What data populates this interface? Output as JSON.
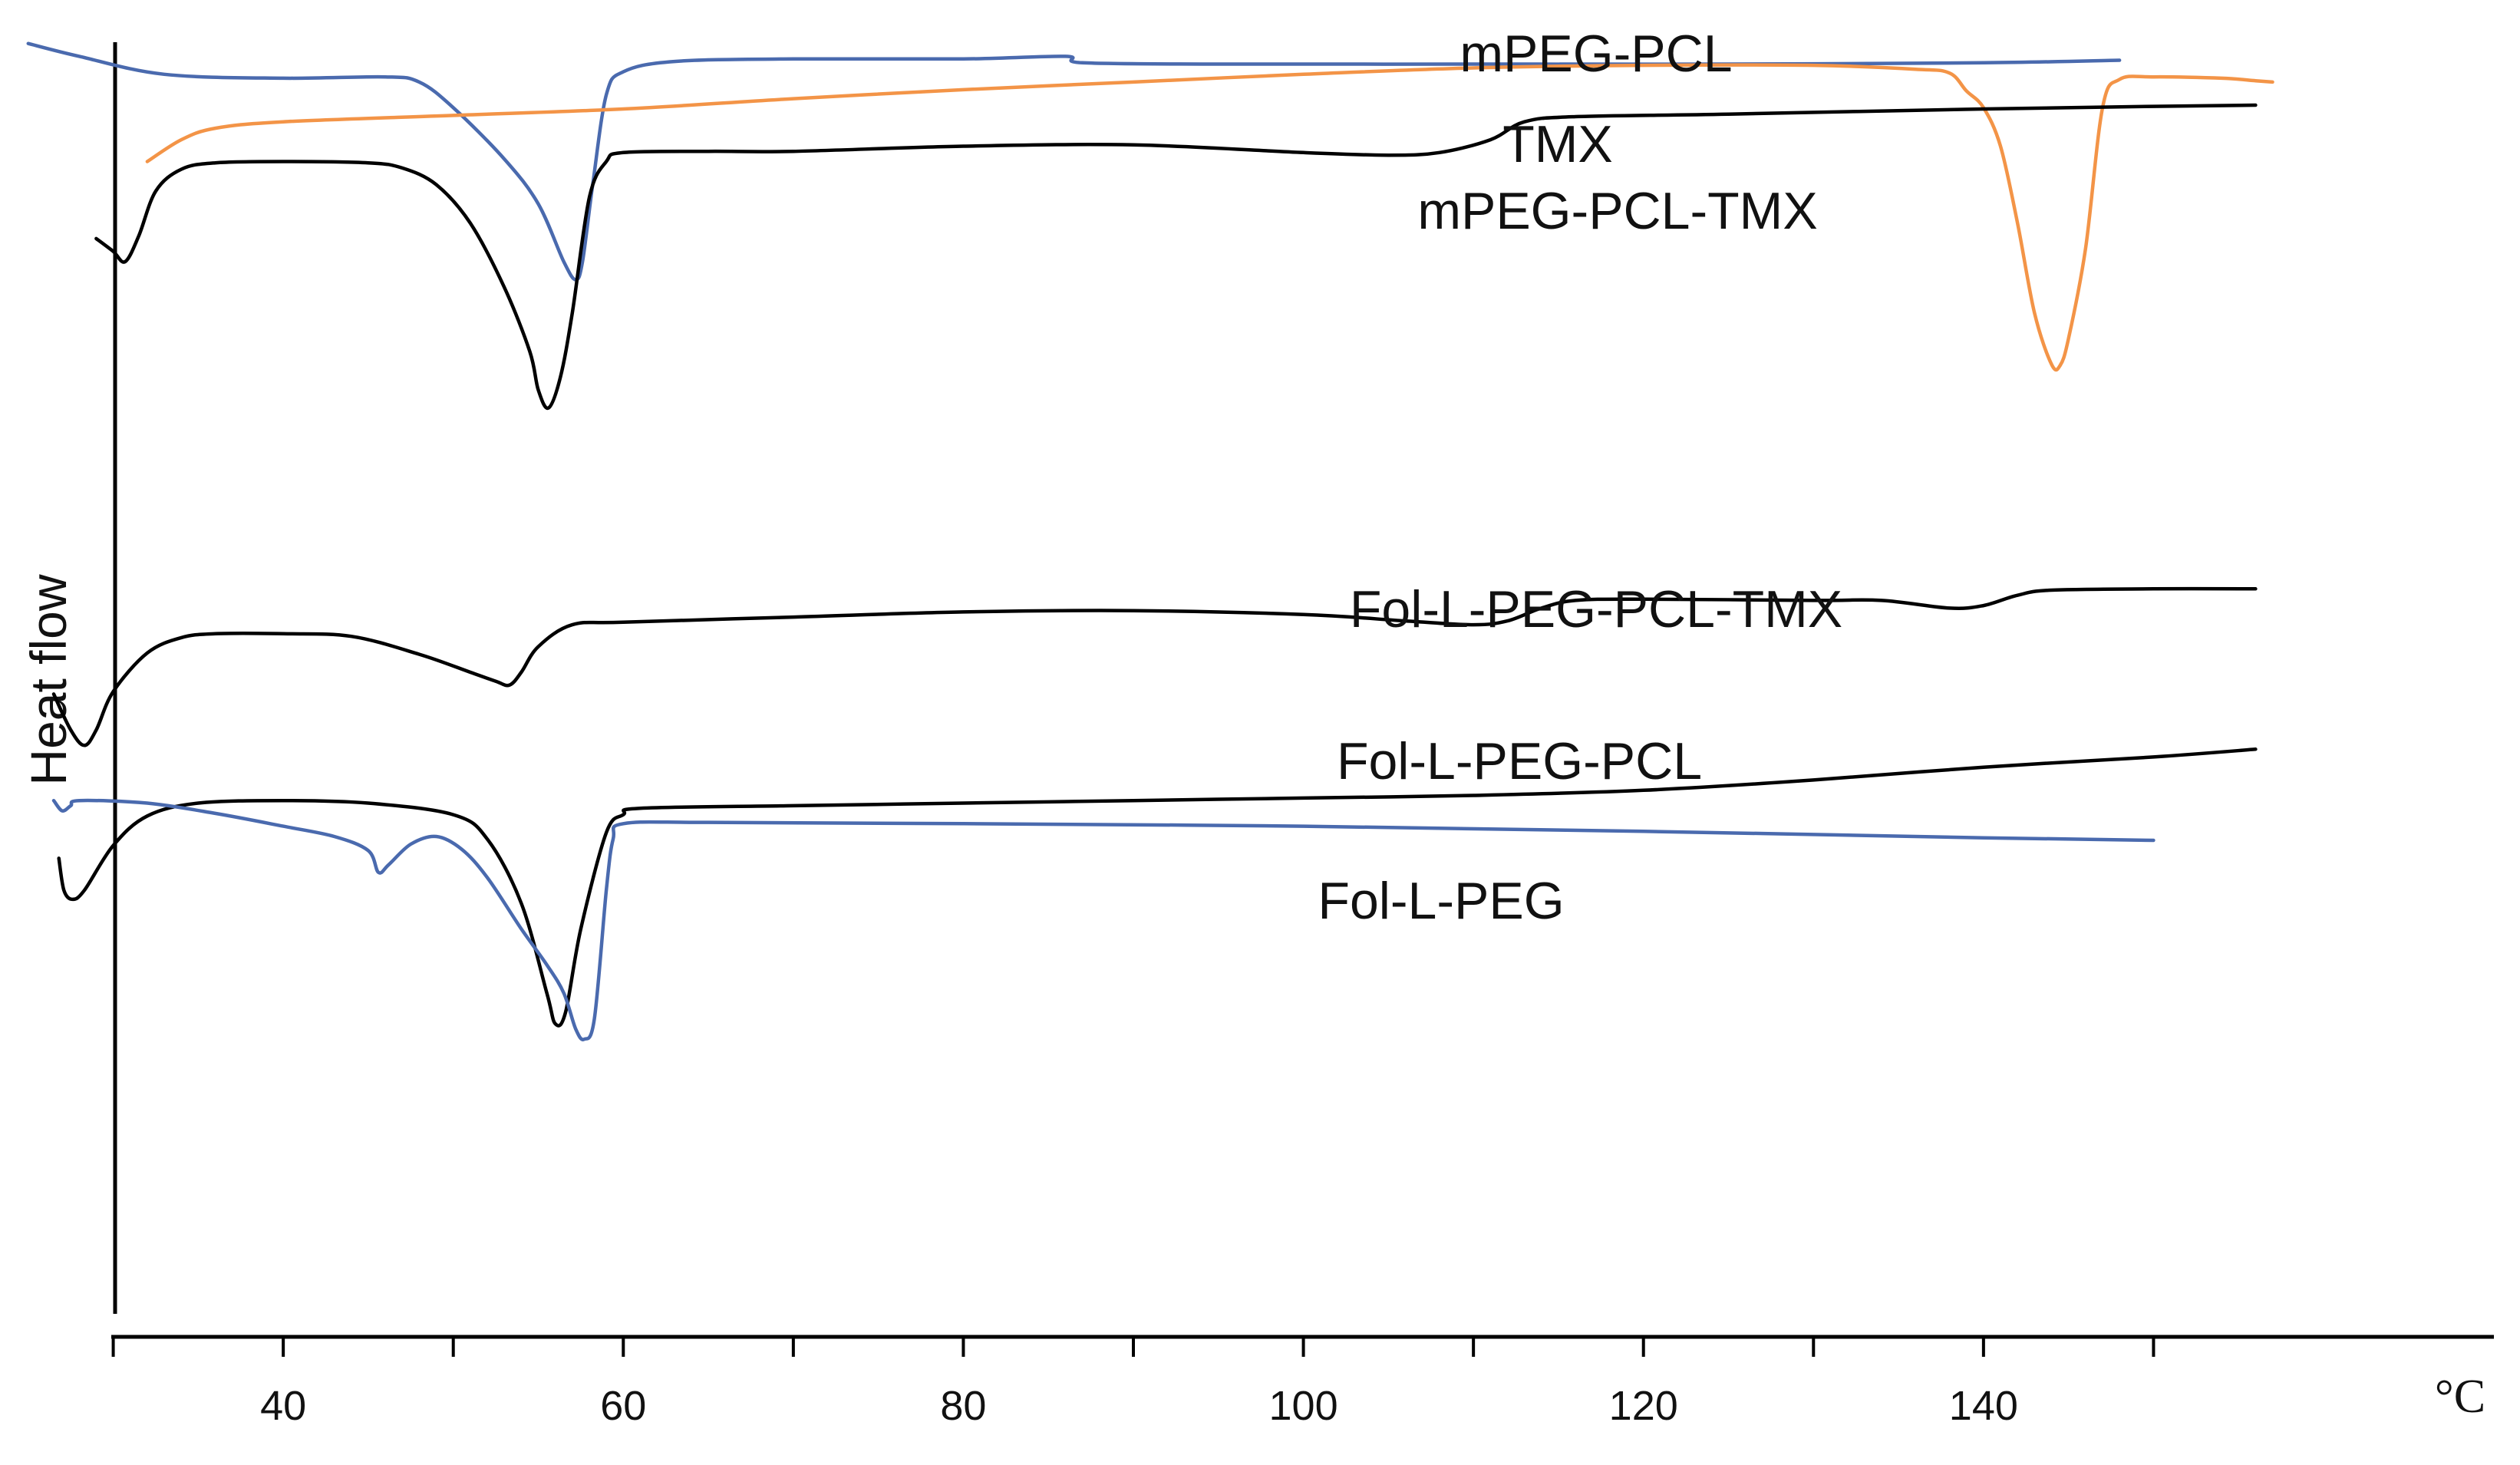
{
  "chart_data": {
    "type": "line",
    "ylabel": "Heat flow",
    "x_unit": "°C",
    "xlim": [
      25,
      160
    ],
    "x_ticks": [
      40,
      60,
      80,
      100,
      120,
      140
    ],
    "x_minor_ticks": [
      30,
      50,
      70,
      90,
      110,
      130,
      150
    ],
    "colors": {
      "black": "#000000",
      "blue": "#4a6aae",
      "orange": "#f39447"
    },
    "series": [
      {
        "name": "mPEG-PCL",
        "color": "#4a6aae",
        "points": [
          [
            25,
            99
          ],
          [
            28,
            98
          ],
          [
            33,
            96.6
          ],
          [
            40,
            96.3
          ],
          [
            46,
            96.4
          ],
          [
            48,
            96
          ],
          [
            50,
            94
          ],
          [
            53,
            90
          ],
          [
            55,
            86.5
          ],
          [
            56.5,
            82
          ],
          [
            57.2,
            80.6
          ],
          [
            57.6,
            82
          ],
          [
            58.2,
            88
          ],
          [
            59,
            95
          ],
          [
            60,
            96.8
          ],
          [
            63,
            97.6
          ],
          [
            70,
            97.8
          ],
          [
            80,
            97.8
          ],
          [
            86,
            98
          ],
          [
            87,
            97.5
          ],
          [
            95,
            97.4
          ],
          [
            110,
            97.4
          ],
          [
            125,
            97.4
          ],
          [
            140,
            97.5
          ],
          [
            148,
            97.7
          ]
        ]
      },
      {
        "name": "TMX",
        "color": "#f39447",
        "points": [
          [
            32,
            89.8
          ],
          [
            34,
            91.5
          ],
          [
            36,
            92.4
          ],
          [
            40,
            92.9
          ],
          [
            50,
            93.4
          ],
          [
            60,
            93.9
          ],
          [
            70,
            94.7
          ],
          [
            80,
            95.4
          ],
          [
            90,
            96
          ],
          [
            100,
            96.6
          ],
          [
            110,
            97.1
          ],
          [
            120,
            97.3
          ],
          [
            130,
            97.3
          ],
          [
            136,
            97
          ],
          [
            138,
            96.7
          ],
          [
            139,
            95.3
          ],
          [
            140,
            94
          ],
          [
            141,
            91
          ],
          [
            142,
            85
          ],
          [
            143,
            78
          ],
          [
            144,
            74
          ],
          [
            144.5,
            73.9
          ],
          [
            145,
            76
          ],
          [
            146,
            83
          ],
          [
            147,
            94
          ],
          [
            148,
            96.2
          ],
          [
            150,
            96.4
          ],
          [
            154,
            96.3
          ],
          [
            156,
            96.1
          ],
          [
            157,
            96
          ]
        ]
      },
      {
        "name": "mPEG-PCL-TMX",
        "color": "#000000",
        "points": [
          [
            29,
            83.8
          ],
          [
            30,
            82.8
          ],
          [
            30.7,
            82
          ],
          [
            31.5,
            84
          ],
          [
            32.5,
            87.5
          ],
          [
            34,
            89.2
          ],
          [
            36,
            89.7
          ],
          [
            40,
            89.8
          ],
          [
            45,
            89.7
          ],
          [
            47,
            89.3
          ],
          [
            49,
            88
          ],
          [
            51,
            85
          ],
          [
            53,
            80
          ],
          [
            54.5,
            75
          ],
          [
            55,
            72
          ],
          [
            55.6,
            70.6
          ],
          [
            56.3,
            73
          ],
          [
            57,
            78
          ],
          [
            58,
            87
          ],
          [
            59,
            89.8
          ],
          [
            60,
            90.5
          ],
          [
            65,
            90.6
          ],
          [
            70,
            90.6
          ],
          [
            80,
            91
          ],
          [
            90,
            91.1
          ],
          [
            100,
            90.5
          ],
          [
            105,
            90.3
          ],
          [
            108,
            90.5
          ],
          [
            111,
            91.5
          ],
          [
            113,
            92.9
          ],
          [
            116,
            93.3
          ],
          [
            125,
            93.5
          ],
          [
            140,
            93.9
          ],
          [
            150,
            94.1
          ],
          [
            156,
            94.2
          ]
        ]
      },
      {
        "name": "Fol-L-PEG-PCL-TMX",
        "color": "#000000",
        "points": [
          [
            26.5,
            48.3
          ],
          [
            27.5,
            45.5
          ],
          [
            28.3,
            44.3
          ],
          [
            29,
            45.5
          ],
          [
            30,
            48.5
          ],
          [
            32,
            51.5
          ],
          [
            34,
            52.7
          ],
          [
            36,
            53
          ],
          [
            40,
            53
          ],
          [
            44,
            52.8
          ],
          [
            48,
            51.4
          ],
          [
            51,
            50
          ],
          [
            52.5,
            49.3
          ],
          [
            53.3,
            49
          ],
          [
            54,
            50
          ],
          [
            55,
            52
          ],
          [
            57,
            53.7
          ],
          [
            60,
            53.9
          ],
          [
            70,
            54.3
          ],
          [
            80,
            54.7
          ],
          [
            90,
            54.8
          ],
          [
            100,
            54.5
          ],
          [
            106,
            54
          ],
          [
            110,
            53.7
          ],
          [
            112,
            54
          ],
          [
            114,
            55
          ],
          [
            116,
            55.6
          ],
          [
            120,
            55.7
          ],
          [
            130,
            55.6
          ],
          [
            134,
            55.6
          ],
          [
            138,
            55
          ],
          [
            140,
            55.2
          ],
          [
            142,
            56
          ],
          [
            144,
            56.4
          ],
          [
            150,
            56.5
          ],
          [
            156,
            56.5
          ]
        ]
      },
      {
        "name": "Fol-L-PEG-PCL",
        "color": "#000000",
        "points": [
          [
            26.8,
            35.5
          ],
          [
            27.1,
            33
          ],
          [
            27.6,
            32.3
          ],
          [
            28.3,
            33
          ],
          [
            30,
            36.5
          ],
          [
            32,
            38.8
          ],
          [
            35,
            39.8
          ],
          [
            40,
            40
          ],
          [
            45,
            39.8
          ],
          [
            50,
            38.9
          ],
          [
            52,
            37
          ],
          [
            54,
            32
          ],
          [
            55.5,
            25
          ],
          [
            56,
            22.6
          ],
          [
            56.6,
            23.5
          ],
          [
            57.5,
            30
          ],
          [
            59,
            37.5
          ],
          [
            60,
            38.9
          ],
          [
            61,
            39.4
          ],
          [
            70,
            39.6
          ],
          [
            80,
            39.8
          ],
          [
            90,
            40
          ],
          [
            100,
            40.2
          ],
          [
            110,
            40.4
          ],
          [
            120,
            40.8
          ],
          [
            130,
            41.6
          ],
          [
            140,
            42.6
          ],
          [
            150,
            43.4
          ],
          [
            156,
            44
          ]
        ]
      },
      {
        "name": "Fol-L-PEG",
        "color": "#4a6aae",
        "points": [
          [
            26.5,
            40
          ],
          [
            27,
            39.2
          ],
          [
            27.5,
            39.6
          ],
          [
            28,
            40
          ],
          [
            32,
            39.8
          ],
          [
            36,
            39
          ],
          [
            40,
            38
          ],
          [
            43,
            37.2
          ],
          [
            45,
            36.1
          ],
          [
            45.6,
            34.4
          ],
          [
            46.2,
            35
          ],
          [
            47.5,
            36.6
          ],
          [
            49,
            37.2
          ],
          [
            50.5,
            36.2
          ],
          [
            52,
            34
          ],
          [
            54,
            30
          ],
          [
            55.5,
            27.2
          ],
          [
            56.5,
            25
          ],
          [
            57.2,
            22.2
          ],
          [
            57.7,
            21.4
          ],
          [
            58.3,
            23
          ],
          [
            59,
            33
          ],
          [
            59.4,
            37
          ],
          [
            60,
            38.2
          ],
          [
            65,
            38.3
          ],
          [
            80,
            38.2
          ],
          [
            100,
            38
          ],
          [
            120,
            37.6
          ],
          [
            140,
            37.1
          ],
          [
            150,
            36.9
          ]
        ]
      }
    ]
  }
}
